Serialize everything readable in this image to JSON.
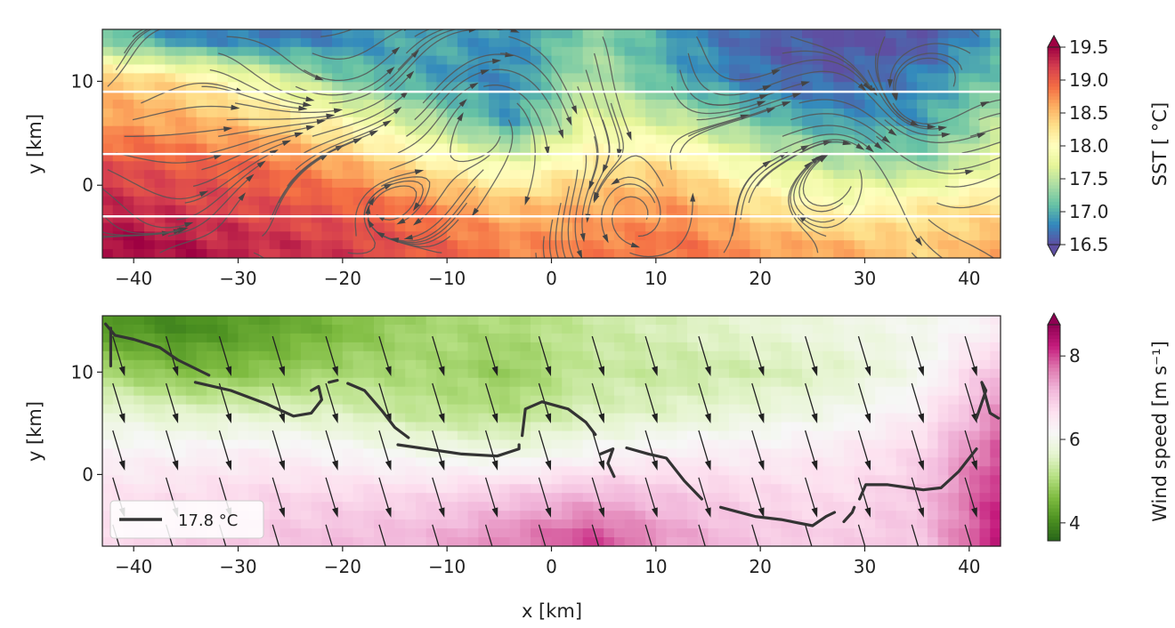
{
  "chart_data": [
    {
      "type": "heatmap",
      "xlabel": "",
      "ylabel": "y [km]",
      "xlim": [
        -43,
        43
      ],
      "ylim": [
        -7,
        15
      ],
      "xticks": [
        "−40",
        "−30",
        "−20",
        "−10",
        "0",
        "10",
        "20",
        "30",
        "40"
      ],
      "xtick_values": [
        -40,
        -30,
        -20,
        -10,
        0,
        10,
        20,
        30,
        40
      ],
      "yticks": [
        "0",
        "10"
      ],
      "ytick_values": [
        0,
        10
      ],
      "colorbar": {
        "label": "SST [ °C]",
        "range": [
          16.5,
          19.5
        ],
        "extend": "both",
        "colormap": "Spectral_r",
        "ticks": [
          "16.5",
          "17.0",
          "17.5",
          "18.0",
          "18.5",
          "19.0",
          "19.5"
        ],
        "tick_values": [
          16.5,
          17.0,
          17.5,
          18.0,
          18.5,
          19.0,
          19.5
        ]
      },
      "grid_x": [
        -43,
        -35.2,
        -27.4,
        -19.5,
        -11.7,
        -3.9,
        3.9,
        11.7,
        19.5,
        27.4,
        35.2,
        43
      ],
      "grid_y": [
        14,
        10,
        6,
        2,
        -2,
        -6
      ],
      "values": [
        [
          17.2,
          16.8,
          16.7,
          16.8,
          17.0,
          16.8,
          17.3,
          16.9,
          16.6,
          16.5,
          16.5,
          17.0
        ],
        [
          18.5,
          18.3,
          17.8,
          17.2,
          16.9,
          16.8,
          17.5,
          17.0,
          16.7,
          16.6,
          16.8,
          17.2
        ],
        [
          18.7,
          18.6,
          18.4,
          18.0,
          17.5,
          16.9,
          17.8,
          17.6,
          17.2,
          16.9,
          16.9,
          17.5
        ],
        [
          19.1,
          19.0,
          18.9,
          18.6,
          18.2,
          17.8,
          18.2,
          18.3,
          17.8,
          17.5,
          17.3,
          17.8
        ],
        [
          19.3,
          19.2,
          19.1,
          19.0,
          18.8,
          18.5,
          18.6,
          18.7,
          18.3,
          18.0,
          18.2,
          18.3
        ],
        [
          19.5,
          19.4,
          19.3,
          19.2,
          19.0,
          18.8,
          18.8,
          18.9,
          18.7,
          18.6,
          18.4,
          18.6
        ]
      ],
      "transects_y": [
        9,
        3,
        -3
      ],
      "overlay": "streamlines",
      "grid": false
    },
    {
      "type": "heatmap",
      "xlabel": "x [km]",
      "ylabel": "y [km]",
      "xlim": [
        -43,
        43
      ],
      "ylim": [
        -7,
        15.5
      ],
      "xticks": [
        "−40",
        "−30",
        "−20",
        "−10",
        "0",
        "10",
        "20",
        "30",
        "40"
      ],
      "xtick_values": [
        -40,
        -30,
        -20,
        -10,
        0,
        10,
        20,
        30,
        40
      ],
      "yticks": [
        "0",
        "10"
      ],
      "ytick_values": [
        0,
        10
      ],
      "colorbar": {
        "label": "Wind speed [m s⁻¹]",
        "range": [
          3.57,
          8.75
        ],
        "extend": "max",
        "colormap": "PiYG_r",
        "ticks": [
          "4",
          "6",
          "8"
        ],
        "tick_values": [
          4,
          6,
          8
        ]
      },
      "grid_x": [
        -43,
        -35.2,
        -27.4,
        -19.5,
        -11.7,
        -3.9,
        3.9,
        11.7,
        19.5,
        27.4,
        35.2,
        43
      ],
      "grid_y": [
        14,
        10,
        6,
        2,
        -2,
        -6
      ],
      "values": [
        [
          4.2,
          4.0,
          4.3,
          4.6,
          5.0,
          5.0,
          5.3,
          5.5,
          5.7,
          5.9,
          6.0,
          6.4
        ],
        [
          5.0,
          4.6,
          4.7,
          5.0,
          5.0,
          4.8,
          5.3,
          5.3,
          5.4,
          5.6,
          6.0,
          7.2
        ],
        [
          5.8,
          5.6,
          5.6,
          5.5,
          5.2,
          5.1,
          5.5,
          5.6,
          5.8,
          6.0,
          6.4,
          7.6
        ],
        [
          6.3,
          6.3,
          6.4,
          6.2,
          6.0,
          5.9,
          6.2,
          6.4,
          6.4,
          6.5,
          6.8,
          8.0
        ],
        [
          6.6,
          6.7,
          6.8,
          6.8,
          6.8,
          7.0,
          7.2,
          7.0,
          6.8,
          6.7,
          7.0,
          8.2
        ],
        [
          6.8,
          6.9,
          7.0,
          7.1,
          7.2,
          7.6,
          8.0,
          7.4,
          7.0,
          6.9,
          7.0,
          8.3
        ]
      ],
      "wind_vector": {
        "u": 0.3,
        "v": -1
      },
      "legend": {
        "label": "17.8 °C",
        "placement": "lower-left"
      },
      "contour_level": 17.8,
      "contour_segments": [
        [
          [
            -42.2,
            14.3
          ],
          [
            -42.2,
            10.6
          ]
        ],
        [
          [
            -42.7,
            14.7
          ],
          [
            -41.8,
            13.6
          ],
          [
            -40,
            13.2
          ],
          [
            -37.5,
            12.4
          ],
          [
            -35.8,
            11.2
          ],
          [
            -33.2,
            9.9
          ],
          [
            -32.8,
            9.7
          ]
        ],
        [
          [
            -34.1,
            9
          ],
          [
            -30.7,
            8.2
          ],
          [
            -27.3,
            6.9
          ],
          [
            -24.7,
            5.7
          ],
          [
            -23,
            6
          ],
          [
            -22,
            7.3
          ],
          [
            -22.3,
            8.6
          ],
          [
            -23,
            8.2
          ]
        ],
        [
          [
            -21.3,
            9
          ],
          [
            -20.5,
            9.2
          ]
        ],
        [
          [
            -19.5,
            8.9
          ],
          [
            -17.9,
            8.2
          ],
          [
            -16.2,
            6.2
          ],
          [
            -15,
            4.6
          ],
          [
            -13.7,
            3.6
          ]
        ],
        [
          [
            -14.7,
            2.9
          ],
          [
            -12,
            2.5
          ],
          [
            -8.6,
            2
          ],
          [
            -5.2,
            1.8
          ],
          [
            -3.1,
            2.5
          ],
          [
            -3.1,
            2.9
          ]
        ],
        [
          [
            -2.8,
            3.8
          ],
          [
            -2.5,
            6.4
          ],
          [
            -0.9,
            7.1
          ],
          [
            1.6,
            6.4
          ],
          [
            3.3,
            5.1
          ],
          [
            4.2,
            3.9
          ]
        ],
        [
          [
            4.7,
            2
          ],
          [
            5.9,
            2.5
          ],
          [
            5.4,
            1.1
          ],
          [
            6,
            -0.2
          ]
        ],
        [
          [
            7.2,
            2.6
          ],
          [
            9.3,
            2
          ],
          [
            11,
            1.6
          ],
          [
            12.7,
            -0.6
          ],
          [
            14.4,
            -2.4
          ]
        ],
        [
          [
            16.2,
            -3.2
          ],
          [
            19.5,
            -4.1
          ],
          [
            22,
            -4.4
          ],
          [
            25,
            -5
          ],
          [
            26.3,
            -4.1
          ],
          [
            27.1,
            -3.7
          ]
        ],
        [
          [
            28,
            -4.6
          ],
          [
            28.8,
            -3.7
          ],
          [
            29,
            -3.2
          ]
        ],
        [
          [
            29.5,
            -2.4
          ],
          [
            30.1,
            -1
          ],
          [
            32.2,
            -1
          ],
          [
            35.6,
            -1.5
          ],
          [
            37.3,
            -1.3
          ],
          [
            39,
            0.3
          ],
          [
            40.7,
            2.5
          ]
        ],
        [
          [
            40.7,
            5.5
          ],
          [
            41.6,
            8.2
          ],
          [
            41.2,
            9
          ],
          [
            42,
            6
          ],
          [
            42.8,
            5.5
          ]
        ]
      ],
      "grid": false
    }
  ]
}
